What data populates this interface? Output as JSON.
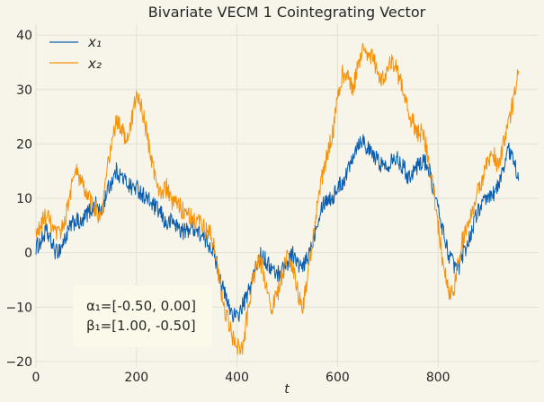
{
  "chart_data": {
    "type": "line",
    "title": "Bivariate VECM 1 Cointegrating Vector",
    "xlabel": "t",
    "ylabel": "",
    "xlim": [
      0,
      1000
    ],
    "ylim": [
      -21,
      42
    ],
    "x_ticks": [
      0,
      200,
      400,
      600,
      800
    ],
    "y_ticks": [
      -20,
      -10,
      0,
      10,
      20,
      30,
      40
    ],
    "grid": true,
    "legend_position": "top-left",
    "annotation": [
      "α₁=[-0.50, 0.00]",
      "β₁=[1.00, -0.50]"
    ],
    "sample_step": 10,
    "series": [
      {
        "name": "x₁",
        "subscript": "1",
        "color": "#0a5fb0",
        "values": [
          1,
          2,
          4,
          2,
          0,
          1,
          3,
          5,
          6,
          5,
          7,
          8,
          9,
          7,
          11,
          13,
          15,
          14,
          13,
          12,
          12,
          11,
          10,
          9,
          8,
          7,
          5,
          6,
          5,
          4,
          4,
          5,
          4,
          3,
          2,
          1,
          -2,
          -6,
          -9,
          -11,
          -12,
          -10,
          -8,
          -5,
          -2,
          0,
          -2,
          -3,
          -4,
          -3,
          -2,
          0,
          -2,
          -3,
          -1,
          2,
          6,
          9,
          10,
          10,
          12,
          13,
          15,
          18,
          20,
          21,
          19,
          18,
          17,
          16,
          16,
          18,
          17,
          16,
          14,
          15,
          16,
          17,
          16,
          12,
          8,
          4,
          0,
          -2,
          -3,
          0,
          2,
          5,
          8,
          9,
          10,
          11,
          12,
          16,
          19,
          17,
          14
        ]
      },
      {
        "name": "x₂",
        "subscript": "2",
        "color": "#f5920a",
        "values": [
          3,
          5,
          7,
          5,
          3,
          4,
          7,
          12,
          15,
          13,
          11,
          9,
          8,
          6,
          14,
          20,
          24,
          23,
          21,
          24,
          29,
          27,
          22,
          17,
          13,
          11,
          12,
          9,
          9,
          8,
          8,
          6,
          6,
          5,
          4,
          3,
          -2,
          -8,
          -12,
          -15,
          -17,
          -18,
          -12,
          -6,
          -2,
          -2,
          -7,
          -10,
          -8,
          -4,
          -1,
          -2,
          -7,
          -10,
          -5,
          2,
          9,
          14,
          18,
          22,
          28,
          33,
          32,
          30,
          34,
          38,
          37,
          36,
          33,
          32,
          34,
          35,
          33,
          30,
          26,
          24,
          22,
          22,
          18,
          12,
          5,
          -2,
          -7,
          -8,
          -2,
          3,
          6,
          8,
          12,
          14,
          17,
          18,
          16,
          20,
          24,
          28,
          34
        ]
      }
    ]
  }
}
